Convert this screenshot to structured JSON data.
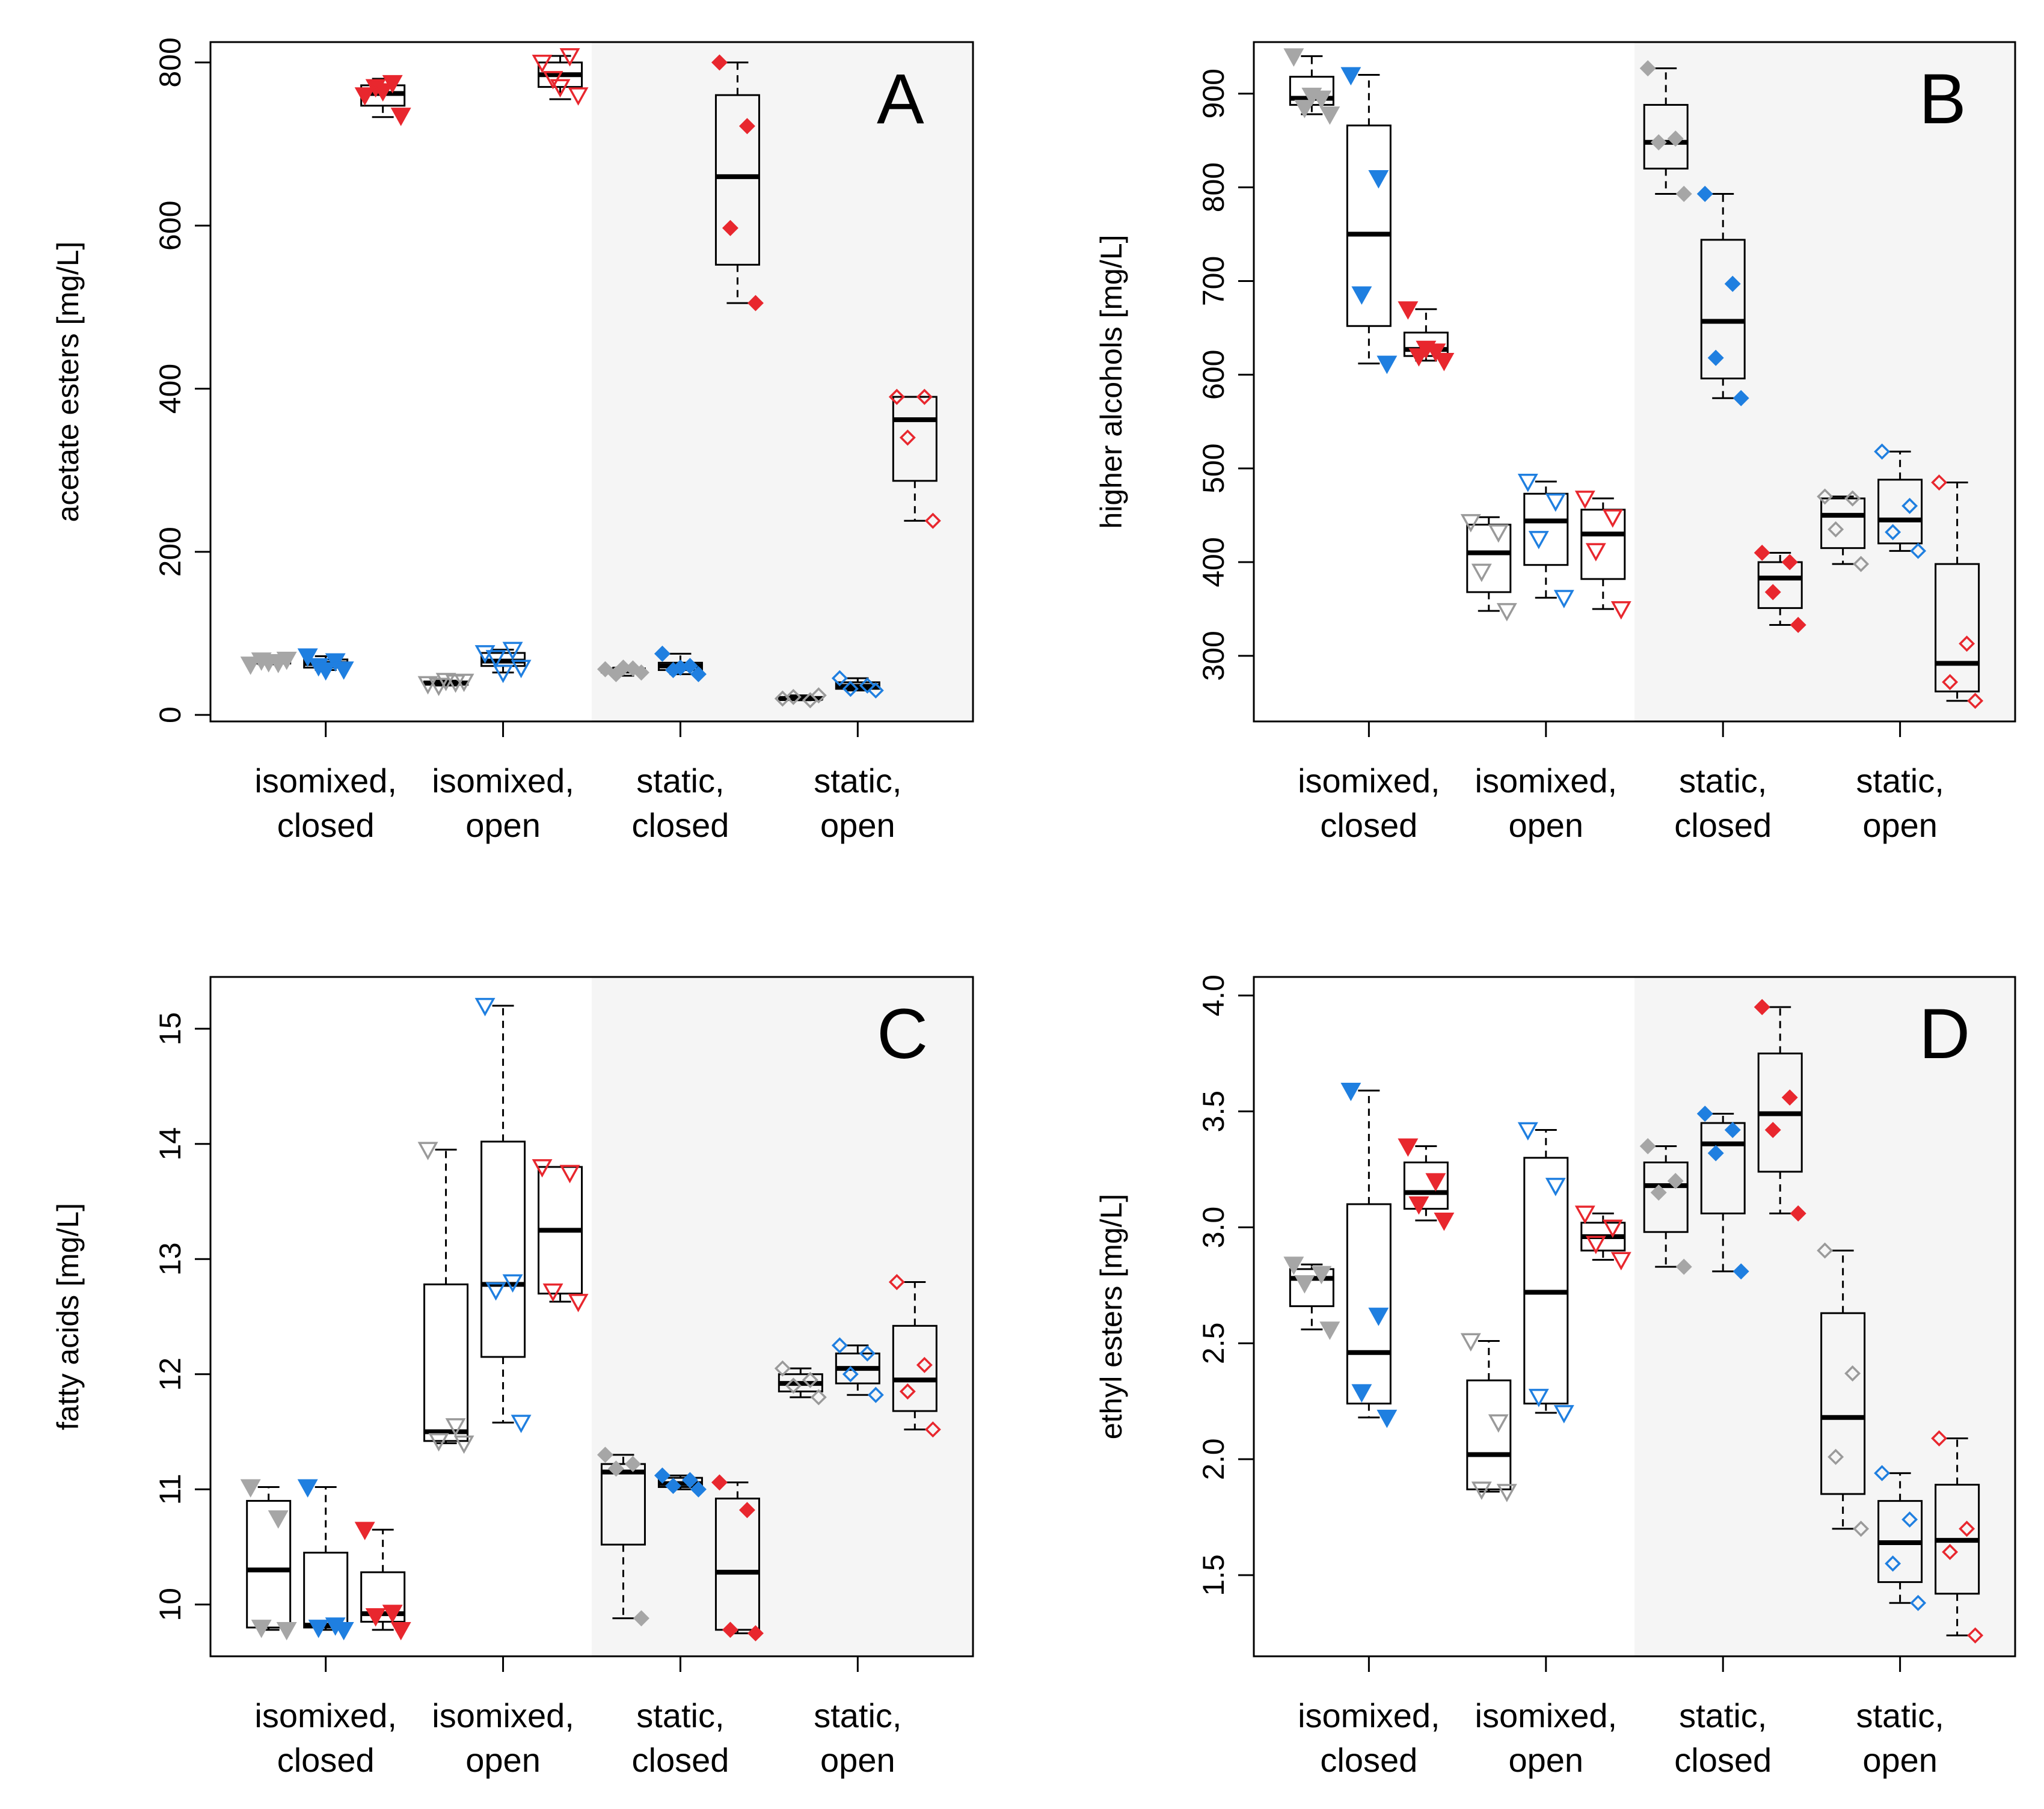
{
  "colors": {
    "grey_filled": "#a6a6a6",
    "grey_open": "#9a9a9a",
    "blue": "#1f7fe0",
    "red": "#e8272e",
    "shade": "#f5f5f5",
    "frame": "#000000"
  },
  "chart_data": [
    {
      "type": "boxplot",
      "panel_letter": "A",
      "ylabel": "acetate esters [mg/L]",
      "ylim": [
        -8,
        825
      ],
      "yticks": [
        0,
        200,
        400,
        600,
        800
      ],
      "ytick_labels": [
        "0",
        "200",
        "400",
        "600",
        "800"
      ],
      "groups": [
        {
          "label_line1": "isomixed,",
          "label_line2": "closed"
        },
        {
          "label_line1": "isomixed,",
          "label_line2": "open"
        },
        {
          "label_line1": "static,",
          "label_line2": "closed"
        },
        {
          "label_line1": "static,",
          "label_line2": "open"
        }
      ],
      "shaded_groups": [
        "static, closed",
        "static, open"
      ],
      "boxes": [
        {
          "group": 0,
          "series": "grey",
          "min": 62,
          "q1": 63,
          "median": 65,
          "q3": 66,
          "max": 68,
          "points": [
            62,
            64,
            67,
            68,
            65
          ]
        },
        {
          "group": 0,
          "series": "blue",
          "min": 55,
          "q1": 58,
          "median": 63,
          "q3": 68,
          "max": 72,
          "points": [
            72,
            66,
            60,
            56,
            55
          ]
        },
        {
          "group": 0,
          "series": "red",
          "min": 733,
          "q1": 747,
          "median": 762,
          "q3": 772,
          "max": 780,
          "points": [
            760,
            775,
            770,
            735,
            765
          ]
        },
        {
          "group": 1,
          "series": "grey",
          "min": 36,
          "q1": 37,
          "median": 39,
          "q3": 41,
          "max": 42,
          "points": [
            38,
            40,
            36,
            41,
            42
          ]
        },
        {
          "group": 1,
          "series": "blue",
          "min": 52,
          "q1": 60,
          "median": 66,
          "q3": 76,
          "max": 80,
          "points": [
            76,
            80,
            70,
            58,
            52
          ]
        },
        {
          "group": 1,
          "series": "red",
          "min": 755,
          "q1": 770,
          "median": 785,
          "q3": 800,
          "max": 808,
          "points": [
            800,
            808,
            780,
            760,
            770
          ]
        },
        {
          "group": 2,
          "series": "grey",
          "min": 48,
          "q1": 52,
          "median": 55,
          "q3": 57,
          "max": 58,
          "points": [
            56,
            57,
            50,
            52,
            58
          ]
        },
        {
          "group": 2,
          "series": "blue",
          "min": 50,
          "q1": 55,
          "median": 60,
          "q3": 64,
          "max": 75,
          "points": [
            75,
            60,
            55,
            50,
            58
          ]
        },
        {
          "group": 2,
          "series": "red",
          "min": 505,
          "q1": 552,
          "median": 660,
          "q3": 760,
          "max": 800,
          "points": [
            800,
            722,
            597,
            505
          ]
        },
        {
          "group": 3,
          "series": "grey",
          "min": 18,
          "q1": 19,
          "median": 20,
          "q3": 22,
          "max": 24,
          "points": [
            20,
            18,
            22,
            24
          ]
        },
        {
          "group": 3,
          "series": "blue",
          "min": 30,
          "q1": 32,
          "median": 35,
          "q3": 40,
          "max": 45,
          "points": [
            45,
            36,
            32,
            30
          ]
        },
        {
          "group": 3,
          "series": "red",
          "min": 238,
          "q1": 287,
          "median": 362,
          "q3": 390,
          "max": 390,
          "points": [
            390,
            390,
            340,
            238
          ]
        }
      ]
    },
    {
      "type": "boxplot",
      "panel_letter": "B",
      "ylabel": "higher alcohols [mg/L]",
      "ylim": [
        230,
        955
      ],
      "yticks": [
        300,
        400,
        500,
        600,
        700,
        800,
        900
      ],
      "ytick_labels": [
        "300",
        "400",
        "500",
        "600",
        "700",
        "800",
        "900"
      ],
      "groups": [
        {
          "label_line1": "isomixed,",
          "label_line2": "closed"
        },
        {
          "label_line1": "isomixed,",
          "label_line2": "open"
        },
        {
          "label_line1": "static,",
          "label_line2": "closed"
        },
        {
          "label_line1": "static,",
          "label_line2": "open"
        }
      ],
      "shaded_groups": [
        "static, closed",
        "static, open"
      ],
      "boxes": [
        {
          "group": 0,
          "series": "grey",
          "min": 878,
          "q1": 888,
          "median": 895,
          "q3": 918,
          "max": 940,
          "points": [
            940,
            895,
            885,
            878,
            898
          ]
        },
        {
          "group": 0,
          "series": "blue",
          "min": 612,
          "q1": 652,
          "median": 750,
          "q3": 866,
          "max": 920,
          "points": [
            920,
            810,
            686,
            612
          ]
        },
        {
          "group": 0,
          "series": "red",
          "min": 615,
          "q1": 620,
          "median": 627,
          "q3": 645,
          "max": 670,
          "points": [
            670,
            625,
            620,
            615,
            628
          ]
        },
        {
          "group": 1,
          "series": "grey",
          "min": 348,
          "q1": 368,
          "median": 410,
          "q3": 440,
          "max": 448,
          "points": [
            443,
            432,
            390,
            348
          ]
        },
        {
          "group": 1,
          "series": "blue",
          "min": 362,
          "q1": 397,
          "median": 444,
          "q3": 473,
          "max": 486,
          "points": [
            486,
            465,
            425,
            362
          ]
        },
        {
          "group": 1,
          "series": "red",
          "min": 350,
          "q1": 382,
          "median": 430,
          "q3": 456,
          "max": 468,
          "points": [
            468,
            448,
            412,
            350
          ]
        },
        {
          "group": 2,
          "series": "grey",
          "min": 793,
          "q1": 820,
          "median": 848,
          "q3": 888,
          "max": 927,
          "points": [
            927,
            852,
            848,
            793
          ]
        },
        {
          "group": 2,
          "series": "blue",
          "min": 575,
          "q1": 596,
          "median": 657,
          "q3": 744,
          "max": 793,
          "points": [
            793,
            697,
            618,
            575
          ]
        },
        {
          "group": 2,
          "series": "red",
          "min": 333,
          "q1": 351,
          "median": 383,
          "q3": 400,
          "max": 410,
          "points": [
            410,
            400,
            368,
            333
          ]
        },
        {
          "group": 3,
          "series": "grey",
          "min": 398,
          "q1": 415,
          "median": 450,
          "q3": 468,
          "max": 470,
          "points": [
            470,
            468,
            435,
            398
          ]
        },
        {
          "group": 3,
          "series": "blue",
          "min": 412,
          "q1": 420,
          "median": 445,
          "q3": 488,
          "max": 518,
          "points": [
            518,
            460,
            432,
            412
          ]
        },
        {
          "group": 3,
          "series": "red",
          "min": 252,
          "q1": 262,
          "median": 292,
          "q3": 398,
          "max": 485,
          "points": [
            485,
            313,
            272,
            252
          ]
        }
      ]
    },
    {
      "type": "boxplot",
      "panel_letter": "C",
      "ylabel": "fatty acids [mg/L]",
      "ylim": [
        9.55,
        15.45
      ],
      "yticks": [
        10,
        11,
        12,
        13,
        14,
        15
      ],
      "ytick_labels": [
        "10",
        "11",
        "12",
        "13",
        "14",
        "15"
      ],
      "groups": [
        {
          "label_line1": "isomixed,",
          "label_line2": "closed"
        },
        {
          "label_line1": "isomixed,",
          "label_line2": "open"
        },
        {
          "label_line1": "static,",
          "label_line2": "closed"
        },
        {
          "label_line1": "static,",
          "label_line2": "open"
        }
      ],
      "shaded_groups": [
        "static, closed",
        "static, open"
      ],
      "boxes": [
        {
          "group": 0,
          "series": "grey",
          "min": 9.78,
          "q1": 9.8,
          "median": 10.3,
          "q3": 10.9,
          "max": 11.02,
          "points": [
            11.02,
            10.75,
            9.8,
            9.78
          ]
        },
        {
          "group": 0,
          "series": "blue",
          "min": 9.78,
          "q1": 9.8,
          "median": 9.82,
          "q3": 10.45,
          "max": 11.02,
          "points": [
            11.02,
            9.82,
            9.8,
            9.78
          ]
        },
        {
          "group": 0,
          "series": "red",
          "min": 9.78,
          "q1": 9.85,
          "median": 9.92,
          "q3": 10.28,
          "max": 10.65,
          "points": [
            10.65,
            9.93,
            9.9,
            9.78
          ]
        },
        {
          "group": 1,
          "series": "grey",
          "min": 11.4,
          "q1": 11.42,
          "median": 11.5,
          "q3": 12.78,
          "max": 13.95,
          "points": [
            13.95,
            11.55,
            11.42,
            11.4
          ]
        },
        {
          "group": 1,
          "series": "blue",
          "min": 11.58,
          "q1": 12.15,
          "median": 12.78,
          "q3": 14.02,
          "max": 15.2,
          "points": [
            15.2,
            12.8,
            12.73,
            11.58
          ]
        },
        {
          "group": 1,
          "series": "red",
          "min": 12.63,
          "q1": 12.7,
          "median": 13.25,
          "q3": 13.8,
          "max": 13.8,
          "points": [
            13.8,
            13.75,
            12.72,
            12.63
          ]
        },
        {
          "group": 2,
          "series": "grey",
          "min": 9.88,
          "q1": 10.52,
          "median": 11.15,
          "q3": 11.22,
          "max": 11.3,
          "points": [
            11.3,
            11.22,
            11.18,
            9.88
          ]
        },
        {
          "group": 2,
          "series": "blue",
          "min": 11.0,
          "q1": 11.02,
          "median": 11.05,
          "q3": 11.1,
          "max": 11.12,
          "points": [
            11.12,
            11.08,
            11.03,
            11.0
          ]
        },
        {
          "group": 2,
          "series": "red",
          "min": 9.75,
          "q1": 9.78,
          "median": 10.28,
          "q3": 10.92,
          "max": 11.06,
          "points": [
            11.06,
            10.82,
            9.78,
            9.75
          ]
        },
        {
          "group": 3,
          "series": "grey",
          "min": 11.8,
          "q1": 11.85,
          "median": 11.92,
          "q3": 12.0,
          "max": 12.05,
          "points": [
            12.05,
            11.95,
            11.9,
            11.8
          ]
        },
        {
          "group": 3,
          "series": "blue",
          "min": 11.82,
          "q1": 11.92,
          "median": 12.05,
          "q3": 12.18,
          "max": 12.25,
          "points": [
            12.25,
            12.18,
            12.0,
            11.82
          ]
        },
        {
          "group": 3,
          "series": "red",
          "min": 11.52,
          "q1": 11.68,
          "median": 11.95,
          "q3": 12.42,
          "max": 12.8,
          "points": [
            12.8,
            12.08,
            11.85,
            11.52
          ]
        }
      ]
    },
    {
      "type": "boxplot",
      "panel_letter": "D",
      "ylabel": "ethyl esters [mg/L]",
      "ylim": [
        1.15,
        4.08
      ],
      "yticks": [
        1.5,
        2.0,
        2.5,
        3.0,
        3.5,
        4.0
      ],
      "ytick_labels": [
        "1.5",
        "2.0",
        "2.5",
        "3.0",
        "3.5",
        "4.0"
      ],
      "groups": [
        {
          "label_line1": "isomixed,",
          "label_line2": "closed"
        },
        {
          "label_line1": "isomixed,",
          "label_line2": "open"
        },
        {
          "label_line1": "static,",
          "label_line2": "closed"
        },
        {
          "label_line1": "static,",
          "label_line2": "open"
        }
      ],
      "shaded_groups": [
        "static, closed",
        "static, open"
      ],
      "boxes": [
        {
          "group": 0,
          "series": "grey",
          "min": 2.56,
          "q1": 2.66,
          "median": 2.78,
          "q3": 2.82,
          "max": 2.84,
          "points": [
            2.84,
            2.8,
            2.76,
            2.56
          ]
        },
        {
          "group": 0,
          "series": "blue",
          "min": 2.18,
          "q1": 2.24,
          "median": 2.46,
          "q3": 3.1,
          "max": 3.59,
          "points": [
            3.59,
            2.62,
            2.29,
            2.18
          ]
        },
        {
          "group": 0,
          "series": "red",
          "min": 3.03,
          "q1": 3.08,
          "median": 3.15,
          "q3": 3.28,
          "max": 3.35,
          "points": [
            3.35,
            3.2,
            3.1,
            3.03
          ]
        },
        {
          "group": 1,
          "series": "grey",
          "min": 1.86,
          "q1": 1.87,
          "median": 2.02,
          "q3": 2.34,
          "max": 2.51,
          "points": [
            2.51,
            2.16,
            1.87,
            1.86
          ]
        },
        {
          "group": 1,
          "series": "blue",
          "min": 2.2,
          "q1": 2.24,
          "median": 2.72,
          "q3": 3.3,
          "max": 3.42,
          "points": [
            3.42,
            3.18,
            2.27,
            2.2
          ]
        },
        {
          "group": 1,
          "series": "red",
          "min": 2.86,
          "q1": 2.9,
          "median": 2.96,
          "q3": 3.02,
          "max": 3.06,
          "points": [
            3.06,
            3.0,
            2.93,
            2.86
          ]
        },
        {
          "group": 2,
          "series": "grey",
          "min": 2.83,
          "q1": 2.98,
          "median": 3.18,
          "q3": 3.28,
          "max": 3.35,
          "points": [
            3.35,
            3.2,
            3.15,
            2.83
          ]
        },
        {
          "group": 2,
          "series": "blue",
          "min": 2.81,
          "q1": 3.06,
          "median": 3.36,
          "q3": 3.45,
          "max": 3.49,
          "points": [
            3.49,
            3.42,
            3.32,
            2.81
          ]
        },
        {
          "group": 2,
          "series": "red",
          "min": 3.06,
          "q1": 3.24,
          "median": 3.49,
          "q3": 3.75,
          "max": 3.95,
          "points": [
            3.95,
            3.56,
            3.42,
            3.06
          ]
        },
        {
          "group": 3,
          "series": "grey",
          "min": 1.7,
          "q1": 1.85,
          "median": 2.18,
          "q3": 2.63,
          "max": 2.9,
          "points": [
            2.9,
            2.37,
            2.01,
            1.7
          ]
        },
        {
          "group": 3,
          "series": "blue",
          "min": 1.38,
          "q1": 1.47,
          "median": 1.64,
          "q3": 1.82,
          "max": 1.94,
          "points": [
            1.94,
            1.74,
            1.55,
            1.38
          ]
        },
        {
          "group": 3,
          "series": "red",
          "min": 1.24,
          "q1": 1.42,
          "median": 1.65,
          "q3": 1.89,
          "max": 2.09,
          "points": [
            2.09,
            1.7,
            1.6,
            1.24
          ]
        }
      ]
    }
  ]
}
